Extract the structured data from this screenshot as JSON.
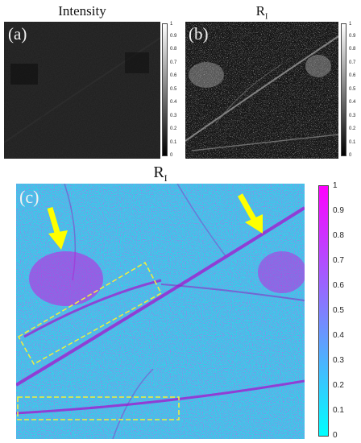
{
  "panels": {
    "a": {
      "label": "(a)",
      "title": "Intensity"
    },
    "b": {
      "label": "(b)",
      "title": "R",
      "title_sub": "I"
    },
    "c": {
      "label": "(c)",
      "title": "R",
      "title_sub": "I"
    }
  },
  "colorbar_small": {
    "ticks": [
      "1",
      "0.9",
      "0.8",
      "0.7",
      "0.6",
      "0.5",
      "0.4",
      "0.3",
      "0.2",
      "0.1",
      "0"
    ],
    "colormap": "gray"
  },
  "colorbar_large": {
    "ticks": [
      "1",
      "0.9",
      "0.8",
      "0.7",
      "0.6",
      "0.5",
      "0.4",
      "0.3",
      "0.2",
      "0.1",
      "0"
    ],
    "colormap": "cool",
    "colors": [
      "#00f2f2",
      "#ff00ff"
    ]
  },
  "annotations": {
    "arrow_color": "#ffff00",
    "box_color": "#f2f03a"
  }
}
